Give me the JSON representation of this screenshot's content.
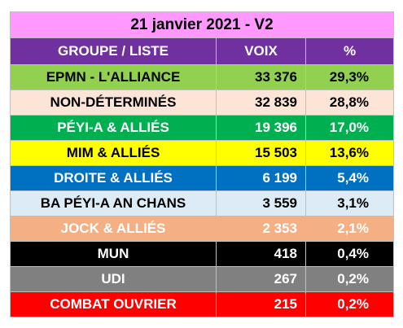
{
  "title": "21 janvier 2021 - V2",
  "table": {
    "header": [
      "GROUPE / LISTE",
      "VOIX",
      "%"
    ],
    "rows": [
      [
        "EPMN - L'ALLIANCE",
        "33 376",
        "29,3%"
      ],
      [
        "NON-DÉTERMINÉS",
        "32 839",
        "28,8%"
      ],
      [
        "PÉYI-A  & ALLIÉS",
        "19 396",
        "17,0%"
      ],
      [
        "MIM & ALLIÉS",
        "15 503",
        "13,6%"
      ],
      [
        "DROITE  & ALLIÉS",
        "6 199",
        "5,4%"
      ],
      [
        "BA PÉYI-A AN CHANS",
        "3 559",
        "3,1%"
      ],
      [
        "JOCK  & ALLIÉS",
        "2 353",
        "2,1%"
      ],
      [
        "MUN",
        "418",
        "0,4%"
      ],
      [
        "UDI",
        "267",
        "0,2%"
      ],
      [
        "COMBAT OUVRIER",
        "215",
        "0,2%"
      ]
    ]
  }
}
